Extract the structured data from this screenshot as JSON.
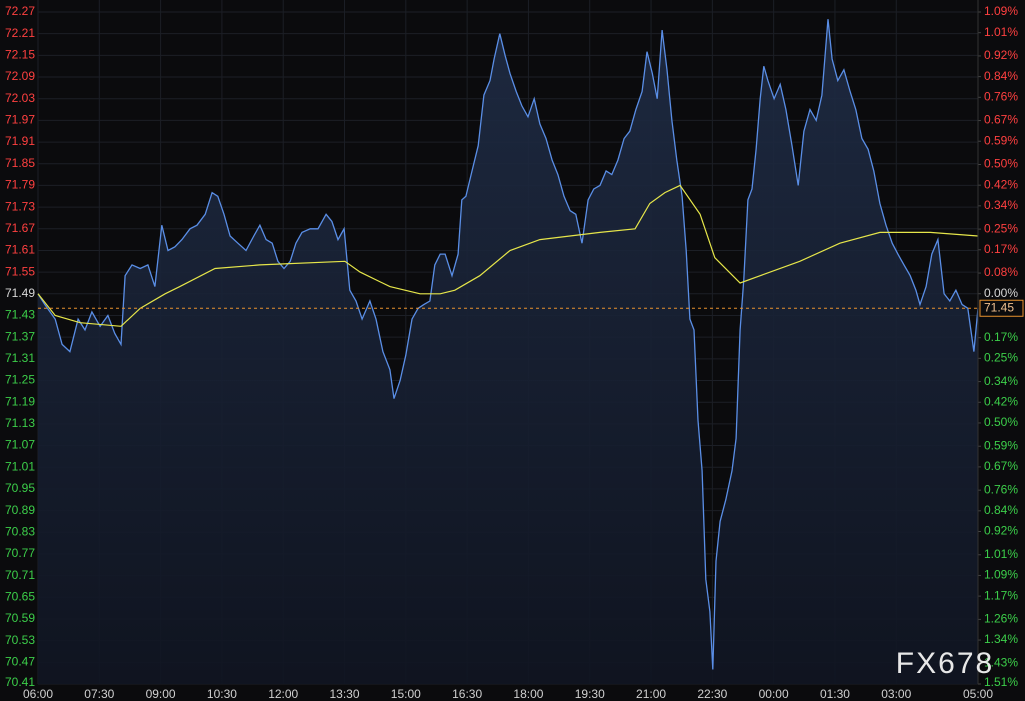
{
  "chart_data": {
    "type": "line",
    "xlim": [
      0,
      23
    ],
    "xticks": [
      {
        "value": 0,
        "label": "06:00"
      },
      {
        "value": 1.5,
        "label": "07:30"
      },
      {
        "value": 3,
        "label": "09:00"
      },
      {
        "value": 4.5,
        "label": "10:30"
      },
      {
        "value": 6,
        "label": "12:00"
      },
      {
        "value": 7.5,
        "label": "13:30"
      },
      {
        "value": 9,
        "label": "15:00"
      },
      {
        "value": 10.5,
        "label": "16:30"
      },
      {
        "value": 12,
        "label": "18:00"
      },
      {
        "value": 13.5,
        "label": "19:30"
      },
      {
        "value": 15,
        "label": "21:00"
      },
      {
        "value": 16.5,
        "label": "22:30"
      },
      {
        "value": 18,
        "label": "00:00"
      },
      {
        "value": 19.5,
        "label": "01:30"
      },
      {
        "value": 21,
        "label": "03:00"
      },
      {
        "value": 23,
        "label": "05:00"
      }
    ],
    "ylim": [
      70.41,
      72.27
    ],
    "yticks": [
      72.27,
      72.21,
      72.15,
      72.09,
      72.03,
      71.97,
      71.91,
      71.85,
      71.79,
      71.73,
      71.67,
      71.61,
      71.55,
      71.49,
      71.43,
      71.37,
      71.31,
      71.25,
      71.19,
      71.13,
      71.07,
      71.01,
      70.95,
      70.89,
      70.83,
      70.77,
      70.71,
      70.65,
      70.59,
      70.53,
      70.47,
      70.41
    ],
    "y2lim": [
      -1.51,
      1.09
    ],
    "y2ticks": [
      {
        "value": 1.09,
        "label": "1.09%"
      },
      {
        "value": 1.01,
        "label": "1.01%"
      },
      {
        "value": 0.92,
        "label": "0.92%"
      },
      {
        "value": 0.84,
        "label": "0.84%"
      },
      {
        "value": 0.76,
        "label": "0.76%"
      },
      {
        "value": 0.67,
        "label": "0.67%"
      },
      {
        "value": 0.59,
        "label": "0.59%"
      },
      {
        "value": 0.5,
        "label": "0.50%"
      },
      {
        "value": 0.42,
        "label": "0.42%"
      },
      {
        "value": 0.34,
        "label": "0.34%"
      },
      {
        "value": 0.25,
        "label": "0.25%"
      },
      {
        "value": 0.17,
        "label": "0.17%"
      },
      {
        "value": 0.08,
        "label": "0.08%"
      },
      {
        "value": 0,
        "label": "0.00%"
      },
      {
        "value": -0.17,
        "label": "0.17%"
      },
      {
        "value": -0.25,
        "label": "0.25%"
      },
      {
        "value": -0.34,
        "label": "0.34%"
      },
      {
        "value": -0.42,
        "label": "0.42%"
      },
      {
        "value": -0.5,
        "label": "0.50%"
      },
      {
        "value": -0.59,
        "label": "0.59%"
      },
      {
        "value": -0.67,
        "label": "0.67%"
      },
      {
        "value": -0.76,
        "label": "0.76%"
      },
      {
        "value": -0.84,
        "label": "0.84%"
      },
      {
        "value": -0.92,
        "label": "0.92%"
      },
      {
        "value": -1.01,
        "label": "1.01%"
      },
      {
        "value": -1.09,
        "label": "1.09%"
      },
      {
        "value": -1.17,
        "label": "1.17%"
      },
      {
        "value": -1.26,
        "label": "1.26%"
      },
      {
        "value": -1.34,
        "label": "1.34%"
      },
      {
        "value": -1.43,
        "label": "1.43%"
      },
      {
        "value": -1.51,
        "label": "1.51%"
      }
    ],
    "grid": true,
    "up_color": "#ff4040",
    "down_color": "#3ccf4a",
    "last_price": 71.45,
    "watermark": "FX678",
    "series": [
      {
        "color": "#5a8ee6",
        "x": [
          0,
          0.17,
          0.42,
          0.59,
          0.78,
          0.98,
          1.15,
          1.32,
          1.52,
          1.71,
          1.88,
          2.03,
          2.13,
          2.3,
          2.5,
          2.69,
          2.86,
          3.03,
          3.18,
          3.35,
          3.52,
          3.72,
          3.89,
          4.09,
          4.26,
          4.4,
          4.55,
          4.7,
          4.89,
          5.09,
          5.28,
          5.43,
          5.58,
          5.73,
          5.87,
          6.02,
          6.17,
          6.31,
          6.46,
          6.66,
          6.85,
          7.05,
          7.19,
          7.34,
          7.49,
          7.63,
          7.78,
          7.93,
          8.12,
          8.27,
          8.44,
          8.61,
          8.71,
          8.86,
          9,
          9.15,
          9.3,
          9.44,
          9.59,
          9.71,
          9.84,
          9.96,
          10.13,
          10.28,
          10.37,
          10.47,
          10.62,
          10.77,
          10.91,
          11.06,
          11.16,
          11.3,
          11.43,
          11.55,
          11.7,
          11.84,
          11.99,
          12.14,
          12.28,
          12.43,
          12.58,
          12.72,
          12.87,
          13.02,
          13.16,
          13.31,
          13.46,
          13.6,
          13.75,
          13.9,
          14.04,
          14.19,
          14.34,
          14.48,
          14.63,
          14.78,
          14.9,
          15.03,
          15.15,
          15.27,
          15.39,
          15.51,
          15.63,
          15.76,
          15.86,
          15.95,
          16.05,
          16.15,
          16.25,
          16.34,
          16.44,
          16.51,
          16.59,
          16.69,
          16.83,
          16.98,
          17.08,
          17.18,
          17.27,
          17.37,
          17.47,
          17.57,
          17.67,
          17.76,
          17.86,
          18.01,
          18.16,
          18.3,
          18.45,
          18.6,
          18.74,
          18.89,
          19.04,
          19.18,
          19.33,
          19.43,
          19.57,
          19.72,
          19.87,
          20.01,
          20.16,
          20.31,
          20.45,
          20.6,
          20.75,
          20.9,
          21.04,
          21.19,
          21.34,
          21.48,
          21.58,
          21.73,
          21.87,
          22.02,
          22.17,
          22.31,
          22.46,
          22.61,
          22.75,
          22.9,
          23
        ],
        "values": [
          71.49,
          71.46,
          71.42,
          71.35,
          71.33,
          71.42,
          71.39,
          71.44,
          71.4,
          71.43,
          71.38,
          71.35,
          71.54,
          71.57,
          71.56,
          71.57,
          71.51,
          71.68,
          71.61,
          71.62,
          71.64,
          71.67,
          71.68,
          71.71,
          71.77,
          71.76,
          71.71,
          71.65,
          71.63,
          71.61,
          71.65,
          71.68,
          71.64,
          71.63,
          71.58,
          71.56,
          71.58,
          71.63,
          71.66,
          71.67,
          71.67,
          71.71,
          71.69,
          71.64,
          71.67,
          71.5,
          71.47,
          71.42,
          71.47,
          71.42,
          71.33,
          71.28,
          71.2,
          71.25,
          71.32,
          71.42,
          71.45,
          71.46,
          71.47,
          71.57,
          71.6,
          71.6,
          71.54,
          71.6,
          71.75,
          71.76,
          71.83,
          71.9,
          72.04,
          72.08,
          72.14,
          72.21,
          72.15,
          72.1,
          72.05,
          72.01,
          71.98,
          72.03,
          71.96,
          71.92,
          71.86,
          71.82,
          71.76,
          71.72,
          71.71,
          71.63,
          71.75,
          71.78,
          71.79,
          71.83,
          71.82,
          71.86,
          71.92,
          71.94,
          72,
          72.05,
          72.16,
          72.1,
          72.03,
          72.22,
          72.11,
          71.97,
          71.86,
          71.76,
          71.61,
          71.42,
          71.39,
          71.14,
          71,
          70.7,
          70.61,
          70.45,
          70.75,
          70.86,
          70.92,
          71,
          71.09,
          71.39,
          71.53,
          71.75,
          71.78,
          71.89,
          72.03,
          72.12,
          72.08,
          72.03,
          72.07,
          72,
          71.9,
          71.79,
          71.94,
          72,
          71.97,
          72.04,
          72.25,
          72.14,
          72.08,
          72.11,
          72.05,
          72,
          71.92,
          71.89,
          71.83,
          71.74,
          71.68,
          71.63,
          71.6,
          71.57,
          71.54,
          71.5,
          71.46,
          71.51,
          71.6,
          71.64,
          71.49,
          71.47,
          71.5,
          71.46,
          71.45,
          71.33,
          71.45
        ]
      },
      {
        "color": "#e6e64a",
        "x": [
          0,
          0.42,
          1.03,
          2.03,
          2.5,
          3.11,
          3.47,
          4.33,
          5.43,
          7.51,
          7.88,
          8.61,
          9.35,
          9.84,
          10.2,
          10.81,
          11.55,
          12.28,
          13.75,
          14.61,
          14.97,
          15.34,
          15.71,
          16.2,
          16.56,
          17.18,
          17.67,
          18.64,
          19.62,
          20.6,
          21.83,
          23
        ],
        "values": [
          71.49,
          71.43,
          71.41,
          71.4,
          71.45,
          71.49,
          71.51,
          71.56,
          71.57,
          71.58,
          71.55,
          71.51,
          71.49,
          71.49,
          71.5,
          71.54,
          71.61,
          71.64,
          71.66,
          71.67,
          71.74,
          71.77,
          71.79,
          71.71,
          71.59,
          71.52,
          71.54,
          71.58,
          71.63,
          71.66,
          71.66,
          71.65
        ]
      }
    ]
  }
}
